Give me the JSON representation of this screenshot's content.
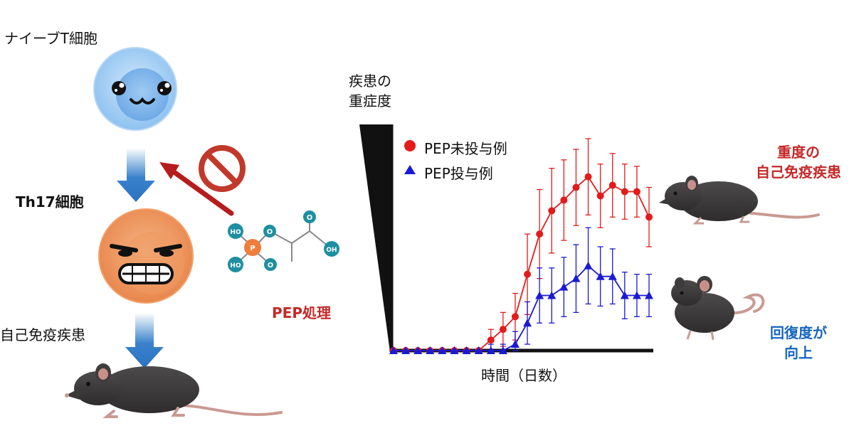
{
  "left_panel": {
    "naive_cell_label": "ナイーブT細胞",
    "th17_label": "Th17細胞",
    "autoimmune_label": "自己免疫疾患",
    "pep_treatment_label": "PEP処理",
    "molecule_atoms": [
      "HO",
      "HO",
      "P",
      "O",
      "O",
      "O",
      "OH"
    ]
  },
  "chart": {
    "ylabel_line1": "疾患の",
    "ylabel_line2": "重症度",
    "xlabel": "時間（日数）",
    "legend": [
      {
        "label": "PEP未投与例",
        "color": "#e31b1b",
        "marker": "circle"
      },
      {
        "label": "PEP投与例",
        "color": "#1a1ad6",
        "marker": "triangle"
      }
    ]
  },
  "right_panel": {
    "severe_line1": "重度の",
    "severe_line2": "自己免疫疾患",
    "recovery_line1": "回復度が",
    "recovery_line2": "向上"
  },
  "chart_data": {
    "type": "line",
    "title": "",
    "xlabel": "時間（日数）",
    "ylabel": "疾患の重症度",
    "x": [
      1,
      2,
      3,
      4,
      5,
      6,
      7,
      8,
      9,
      10,
      11,
      12,
      13,
      14,
      15,
      16,
      17,
      18,
      19,
      20,
      21,
      22
    ],
    "ylim": [
      0,
      10
    ],
    "series": [
      {
        "name": "PEP未投与例",
        "color": "#e31b1b",
        "marker": "circle",
        "values": [
          0,
          0,
          0,
          0,
          0,
          0,
          0,
          0,
          0.5,
          1,
          1.6,
          3.6,
          5.5,
          6.6,
          7.1,
          7.7,
          8.2,
          7.3,
          7.8,
          7.5,
          7.5,
          6.3
        ],
        "errors": [
          0,
          0,
          0,
          0,
          0,
          0,
          0,
          0,
          0.5,
          0.8,
          1.1,
          1.9,
          2.1,
          2.0,
          1.9,
          1.8,
          1.8,
          1.5,
          1.5,
          1.3,
          1.2,
          1.4
        ]
      },
      {
        "name": "PEP投与例",
        "color": "#1a1ad6",
        "marker": "triangle",
        "values": [
          0,
          0,
          0,
          0,
          0,
          0,
          0,
          0,
          0,
          0,
          0.3,
          1.3,
          2.6,
          2.6,
          3.0,
          3.4,
          4.0,
          3.5,
          3.5,
          2.6,
          2.6,
          2.6
        ],
        "errors": [
          0,
          0,
          0,
          0,
          0,
          0,
          0,
          0,
          0.3,
          0.3,
          0.6,
          1.0,
          1.3,
          1.3,
          1.4,
          1.6,
          1.8,
          1.4,
          1.3,
          1.1,
          1.0,
          1.0
        ]
      }
    ],
    "grid": false,
    "legend_position": "top-left"
  }
}
